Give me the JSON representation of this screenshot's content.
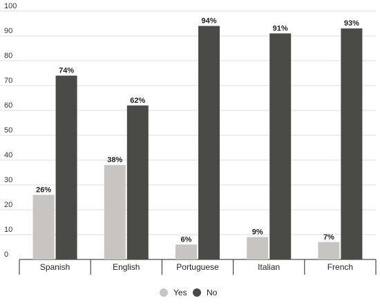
{
  "chart_data": {
    "type": "bar",
    "categories": [
      "Spanish",
      "English",
      "Portuguese",
      "Italian",
      "French"
    ],
    "series": [
      {
        "name": "Yes",
        "values": [
          26,
          38,
          6,
          9,
          7
        ],
        "color": "#c8c4c1"
      },
      {
        "name": "No",
        "values": [
          74,
          62,
          94,
          91,
          93
        ],
        "color": "#4a4a47"
      }
    ],
    "data_labels": {
      "Yes": [
        "26%",
        "38%",
        "6%",
        "9%",
        "7%"
      ],
      "No": [
        "74%",
        "62%",
        "94%",
        "91%",
        "93%"
      ]
    },
    "y_ticks": [
      "0",
      "10",
      "20",
      "30",
      "40",
      "50",
      "60",
      "70",
      "80",
      "90",
      "100"
    ],
    "ylim": [
      0,
      100
    ],
    "grid": true,
    "legend_position": "bottom",
    "title": "",
    "xlabel": "",
    "ylabel": ""
  }
}
